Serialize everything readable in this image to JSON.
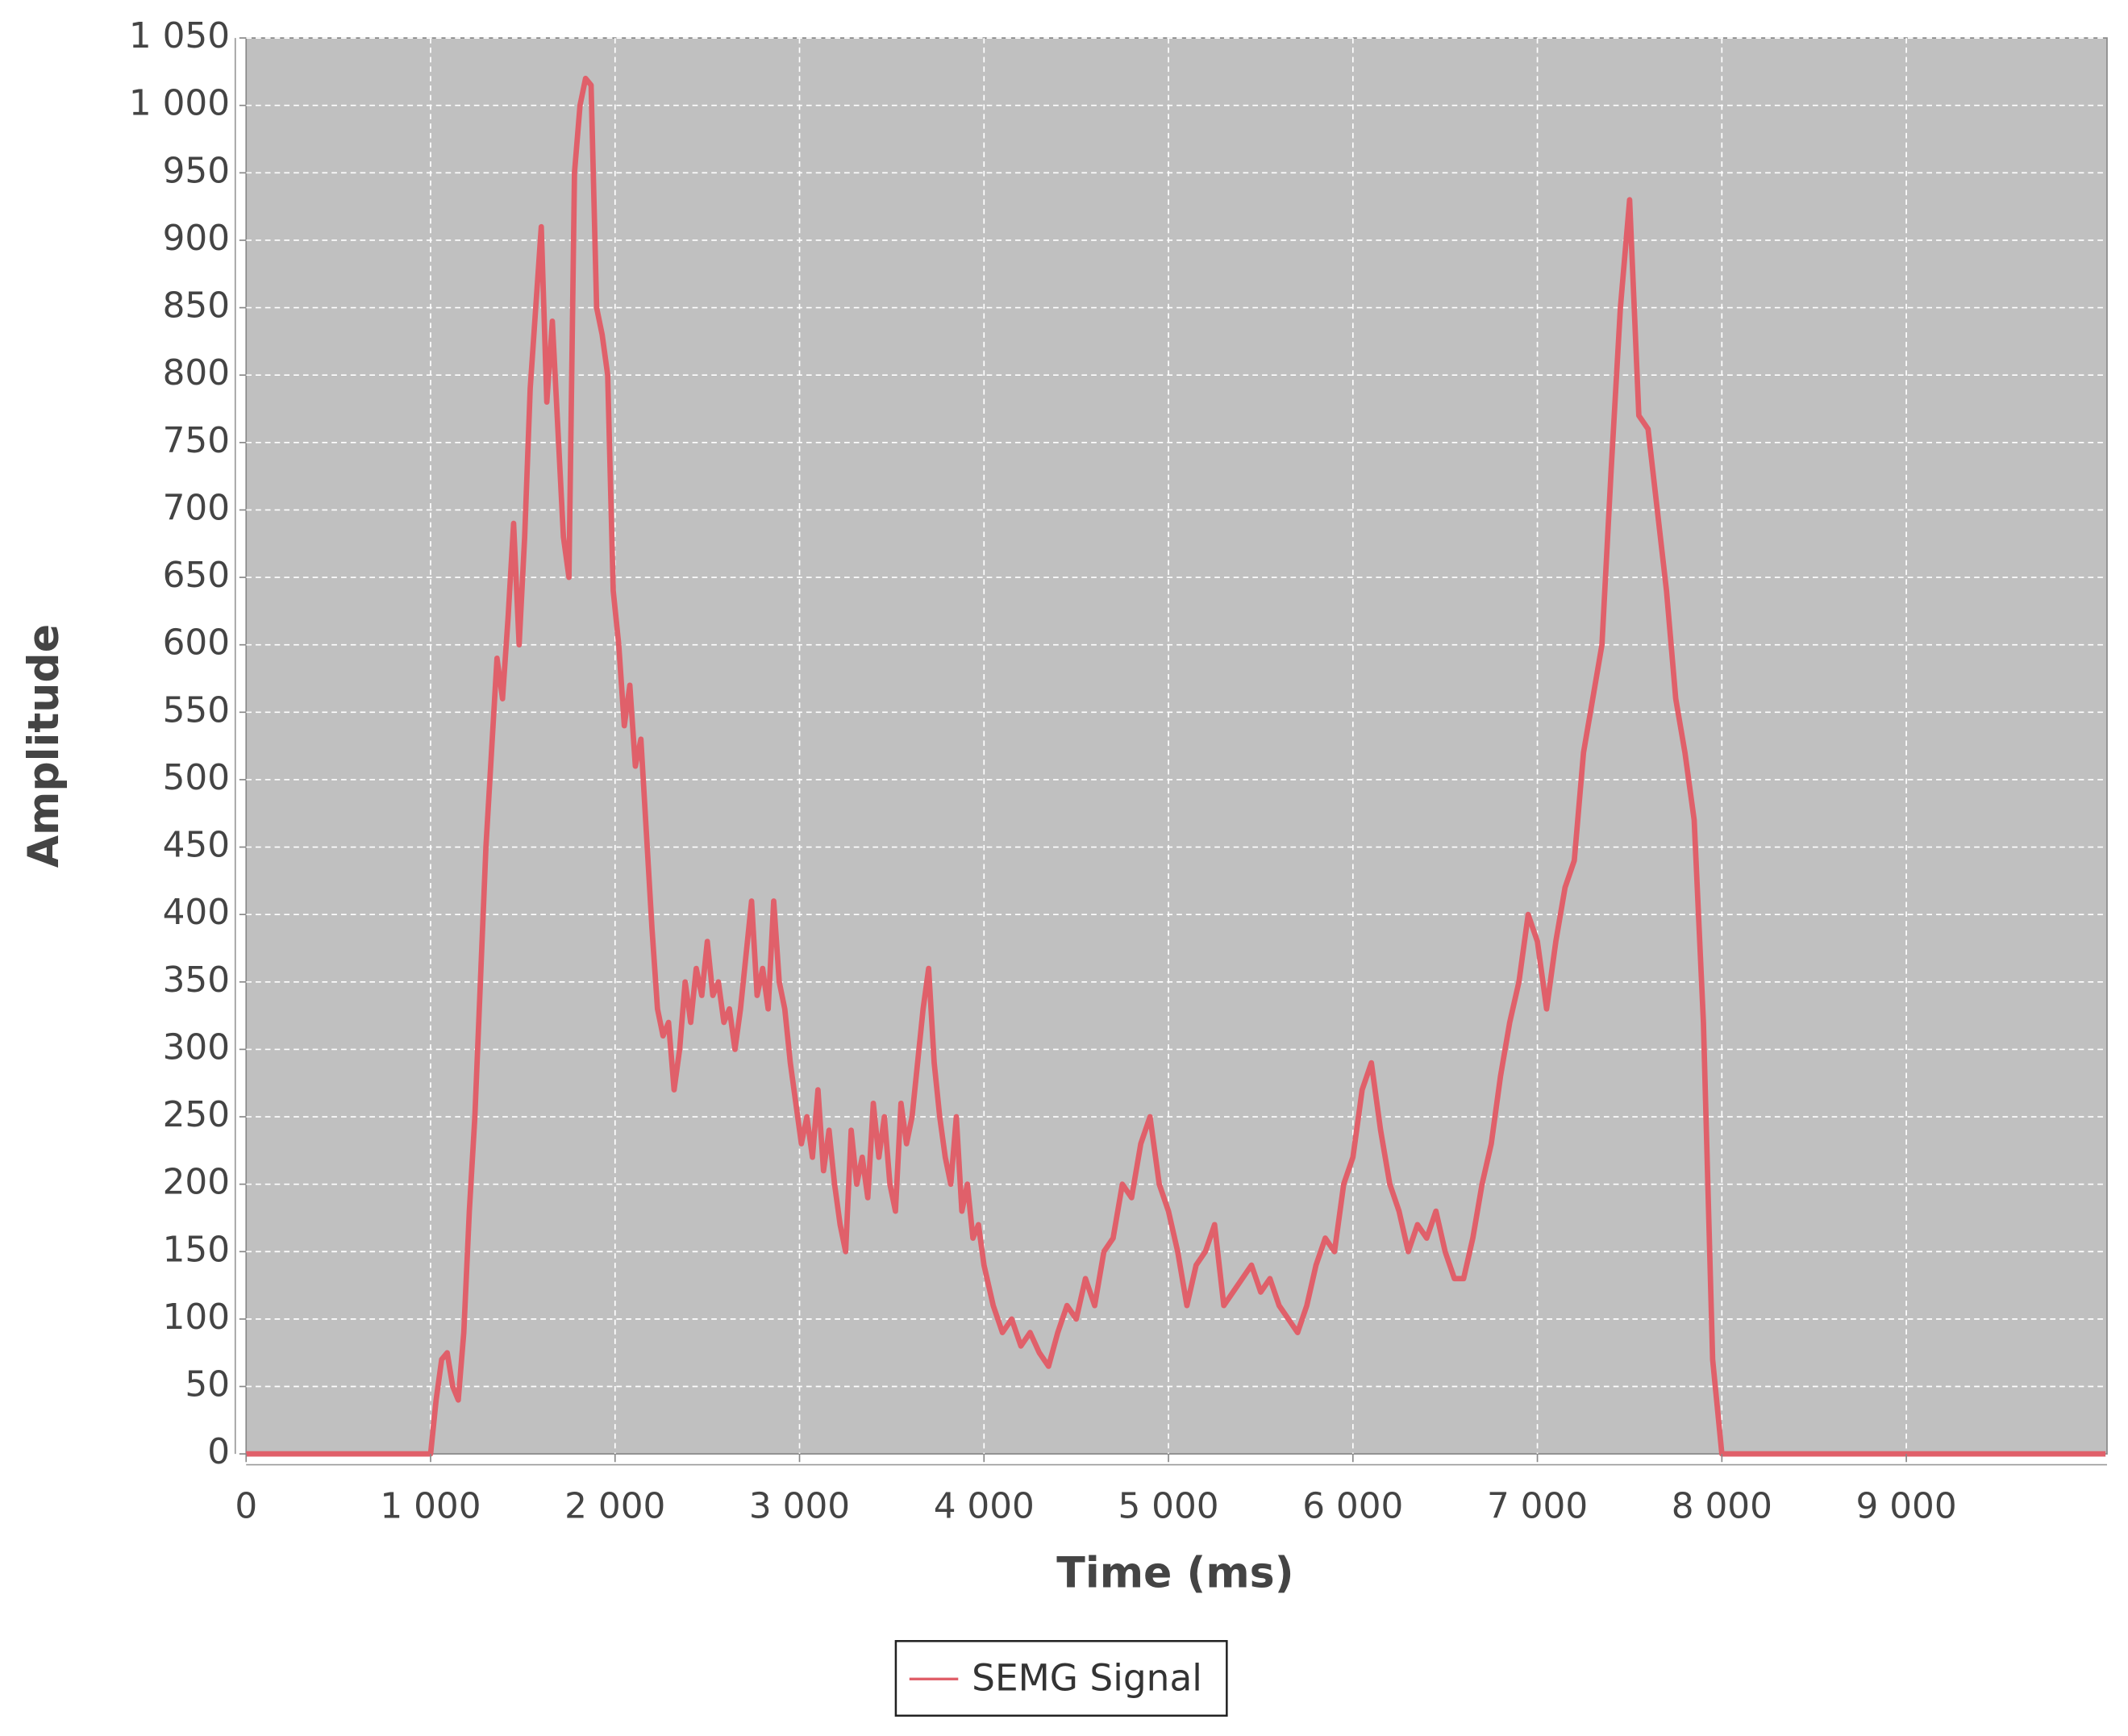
{
  "chart_data": {
    "type": "line",
    "x_label": "Time (ms)",
    "y_label": "Amplitude",
    "x": [
      0,
      1000,
      1030,
      1060,
      1090,
      1120,
      1150,
      1180,
      1210,
      1240,
      1270,
      1300,
      1330,
      1360,
      1390,
      1420,
      1450,
      1480,
      1510,
      1540,
      1570,
      1600,
      1630,
      1660,
      1690,
      1720,
      1750,
      1780,
      1810,
      1840,
      1870,
      1900,
      1930,
      1960,
      1990,
      2020,
      2050,
      2080,
      2110,
      2140,
      2170,
      2200,
      2230,
      2260,
      2290,
      2320,
      2350,
      2380,
      2410,
      2440,
      2470,
      2500,
      2530,
      2560,
      2590,
      2620,
      2650,
      2680,
      2710,
      2740,
      2770,
      2800,
      2830,
      2860,
      2890,
      2920,
      2950,
      2980,
      3010,
      3040,
      3070,
      3100,
      3130,
      3160,
      3190,
      3220,
      3250,
      3280,
      3310,
      3340,
      3370,
      3400,
      3430,
      3460,
      3490,
      3520,
      3550,
      3580,
      3610,
      3640,
      3670,
      3700,
      3730,
      3760,
      3790,
      3820,
      3850,
      3880,
      3910,
      3940,
      3970,
      4000,
      4050,
      4100,
      4150,
      4200,
      4250,
      4300,
      4350,
      4400,
      4450,
      4500,
      4550,
      4600,
      4650,
      4700,
      4750,
      4800,
      4850,
      4900,
      4950,
      5000,
      5050,
      5100,
      5150,
      5200,
      5250,
      5300,
      5350,
      5400,
      5450,
      5500,
      5550,
      5600,
      5650,
      5700,
      5750,
      5800,
      5850,
      5900,
      5950,
      6000,
      6050,
      6100,
      6150,
      6200,
      6250,
      6300,
      6350,
      6400,
      6450,
      6500,
      6550,
      6600,
      6650,
      6700,
      6750,
      6800,
      6850,
      6900,
      6950,
      7000,
      7050,
      7100,
      7150,
      7200,
      7250,
      7300,
      7350,
      7400,
      7450,
      7500,
      7550,
      7600,
      7650,
      7700,
      7750,
      7800,
      7850,
      7900,
      7950,
      8000,
      10080
    ],
    "series": [
      {
        "name": "SEMG Signal",
        "color": "#e0606a",
        "values": [
          0,
          0,
          40,
          70,
          75,
          50,
          40,
          90,
          180,
          250,
          350,
          450,
          520,
          590,
          560,
          620,
          690,
          600,
          680,
          790,
          850,
          910,
          780,
          840,
          760,
          680,
          650,
          950,
          1000,
          1020,
          1015,
          850,
          830,
          800,
          640,
          600,
          540,
          570,
          510,
          530,
          460,
          390,
          330,
          310,
          320,
          270,
          300,
          350,
          320,
          360,
          340,
          380,
          340,
          350,
          320,
          330,
          300,
          330,
          370,
          410,
          340,
          360,
          330,
          410,
          350,
          330,
          290,
          260,
          230,
          250,
          220,
          270,
          210,
          240,
          200,
          170,
          150,
          240,
          200,
          220,
          190,
          260,
          220,
          250,
          200,
          180,
          260,
          230,
          250,
          290,
          330,
          360,
          290,
          250,
          220,
          200,
          250,
          180,
          200,
          160,
          170,
          140,
          110,
          90,
          100,
          80,
          90,
          75,
          65,
          90,
          110,
          100,
          130,
          110,
          150,
          160,
          200,
          190,
          230,
          250,
          200,
          180,
          150,
          110,
          140,
          150,
          170,
          110,
          120,
          130,
          140,
          120,
          130,
          110,
          100,
          90,
          110,
          140,
          160,
          150,
          200,
          220,
          270,
          290,
          240,
          200,
          180,
          150,
          170,
          160,
          180,
          150,
          130,
          130,
          160,
          200,
          230,
          280,
          320,
          350,
          400,
          380,
          330,
          380,
          420,
          440,
          520,
          560,
          600,
          730,
          850,
          930,
          770,
          760,
          700,
          640,
          560,
          520,
          470,
          320,
          70,
          0,
          0
        ]
      }
    ],
    "xlim": [
      0,
      10088
    ],
    "ylim": [
      0,
      1050
    ],
    "xticks": [
      0,
      {
        "value": 1000,
        "label": "1 000"
      },
      {
        "value": 2000,
        "label": "2 000"
      },
      {
        "value": 3000,
        "label": "3 000"
      },
      {
        "value": 4000,
        "label": "4 000"
      },
      {
        "value": 5000,
        "label": "5 000"
      },
      {
        "value": 6000,
        "label": "6 000"
      },
      {
        "value": 7000,
        "label": "7 000"
      },
      {
        "value": 8000,
        "label": "8 000"
      },
      {
        "value": 9000,
        "label": "9 000"
      }
    ],
    "yticks": [
      0,
      50,
      100,
      150,
      200,
      250,
      300,
      350,
      400,
      450,
      500,
      550,
      600,
      650,
      700,
      750,
      800,
      850,
      900,
      950,
      {
        "value": 1000,
        "label": "1 000"
      },
      {
        "value": 1050,
        "label": "1 050"
      }
    ],
    "grid": true,
    "plot_background": "#c0c0c0",
    "legend": "bottom"
  }
}
